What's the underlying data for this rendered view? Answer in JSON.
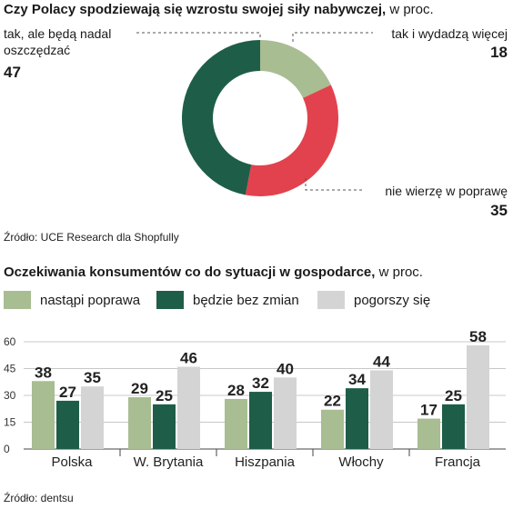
{
  "chart_data": [
    {
      "type": "pie",
      "title": "Czy Polacy spodziewają się wzrostu swojej siły nabywczej,",
      "unit": "w proc.",
      "slices": [
        {
          "label": "tak i wydadzą więcej",
          "value": 18,
          "color": "#a8bd92"
        },
        {
          "label": "nie wierzę w poprawę",
          "value": 35,
          "color": "#e2424d"
        },
        {
          "label_line1": "tak, ale będą nadal",
          "label_line2": "oszczędzać",
          "value": 47,
          "color": "#1e5e48"
        }
      ],
      "source": "Źródło: UCE Research dla Shopfully"
    },
    {
      "type": "bar",
      "title": "Oczekiwania konsumentów co do sytuacji w gospodarce,",
      "unit": "w proc.",
      "categories": [
        "Polska",
        "W. Brytania",
        "Hiszpania",
        "Włochy",
        "Francja"
      ],
      "series": [
        {
          "name": "nastąpi poprawa",
          "values": [
            38,
            29,
            28,
            22,
            17
          ],
          "color": "#a8bd92"
        },
        {
          "name": "będzie bez zmian",
          "values": [
            27,
            25,
            32,
            34,
            25
          ],
          "color": "#1e5e48"
        },
        {
          "name": "pogorszy się",
          "values": [
            35,
            46,
            40,
            44,
            58
          ],
          "color": "#d4d4d4"
        }
      ],
      "ylim": [
        0,
        60
      ],
      "yticks": [
        0,
        15,
        30,
        45,
        60
      ],
      "grid": true,
      "legend": "top",
      "source": "Źródło: dentsu"
    }
  ]
}
